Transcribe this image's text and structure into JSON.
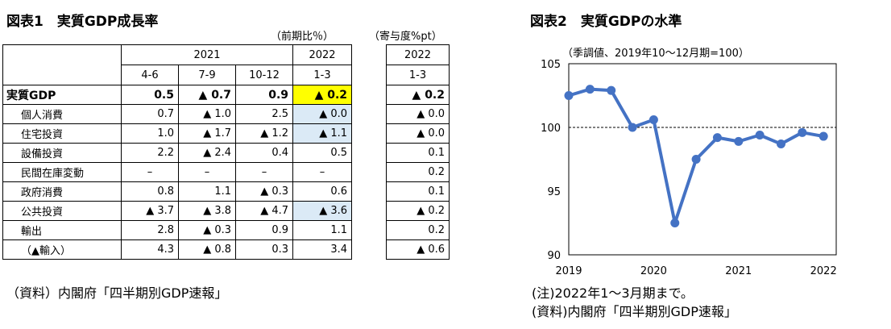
{
  "left": {
    "title": "図表1　実質GDP成長率",
    "unit1": "（前期比％）",
    "unit2": "（寄与度%pt）",
    "years": [
      "2021",
      "2022"
    ],
    "quarters": [
      "4-6",
      "7-9",
      "10-12",
      "1-3"
    ],
    "contrib_year": "2022",
    "contrib_quarter": "1-3",
    "rows": [
      {
        "label": "実質GDP",
        "v": [
          "0.5",
          "▲ 0.7",
          "0.9",
          "▲ 0.2"
        ],
        "c": "▲ 0.2"
      },
      {
        "label": "個人消費",
        "v": [
          "0.7",
          "▲ 1.0",
          "2.5",
          "▲ 0.0"
        ],
        "c": "▲ 0.0"
      },
      {
        "label": "住宅投資",
        "v": [
          "1.0",
          "▲ 1.7",
          "▲ 1.2",
          "▲ 1.1"
        ],
        "c": "▲ 0.0"
      },
      {
        "label": "設備投資",
        "v": [
          "2.2",
          "▲ 2.4",
          "0.4",
          "0.5"
        ],
        "c": "0.1"
      },
      {
        "label": "民間在庫変動",
        "v": [
          "–",
          "–",
          "–",
          "–"
        ],
        "c": "0.2"
      },
      {
        "label": "政府消費",
        "v": [
          "0.8",
          "1.1",
          "▲ 0.3",
          "0.6"
        ],
        "c": "0.1"
      },
      {
        "label": "公共投資",
        "v": [
          "▲ 3.7",
          "▲ 3.8",
          "▲ 4.7",
          "▲ 3.6"
        ],
        "c": "▲ 0.2"
      },
      {
        "label": "輸出",
        "v": [
          "2.8",
          "▲ 0.3",
          "0.9",
          "1.1"
        ],
        "c": "0.2"
      },
      {
        "label": "（▲輸入）",
        "v": [
          "4.3",
          "▲ 0.8",
          "0.3",
          "3.4"
        ],
        "c": "▲ 0.6"
      }
    ],
    "source": "（資料）内閣府「四半期別GDP速報」",
    "highlight_color": "#ffff00",
    "shade_color": "#dbeaf6"
  },
  "right": {
    "title": "図表2　実質GDPの水準",
    "note": "(注)2022年1～3月期まで。",
    "source": "(資料)内閣府「四半期別GDP速報」"
  },
  "chart_data": {
    "type": "line",
    "subtitle": "（季調値、2019年10～12月期=100）",
    "x": [
      "2019Q1",
      "2019Q2",
      "2019Q3",
      "2019Q4",
      "2020Q1",
      "2020Q2",
      "2020Q3",
      "2020Q4",
      "2021Q1",
      "2021Q2",
      "2021Q3",
      "2021Q4",
      "2022Q1"
    ],
    "values": [
      102.5,
      103.0,
      102.9,
      100.0,
      100.6,
      92.5,
      97.5,
      99.2,
      98.9,
      99.4,
      98.7,
      99.6,
      99.3
    ],
    "xticks": [
      "2019",
      "2020",
      "2021",
      "2022"
    ],
    "yticks": [
      "105",
      "100",
      "95",
      "90"
    ],
    "ylim": [
      90,
      105
    ],
    "reference_line": 100,
    "line_color": "#4472c4",
    "grid": false
  }
}
